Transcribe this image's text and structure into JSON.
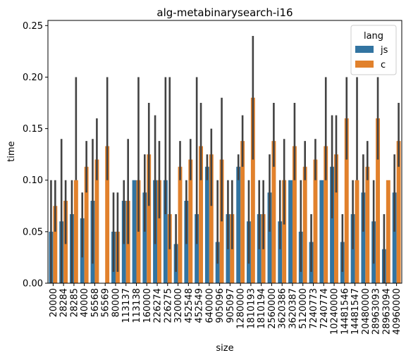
{
  "chart_data": {
    "type": "bar",
    "title": "alg-metabinarysearch-i16",
    "xlabel": "size",
    "ylabel": "time",
    "ylim": [
      0,
      0.255
    ],
    "yticks": [
      "0.00",
      "0.05",
      "0.10",
      "0.15",
      "0.20",
      "0.25"
    ],
    "legend": {
      "title": "lang",
      "position": "top-right"
    },
    "categories": [
      "20000",
      "28284",
      "28285",
      "40000",
      "56568",
      "56569",
      "80000",
      "113137",
      "113138",
      "160000",
      "226274",
      "226275",
      "320000",
      "452548",
      "452549",
      "640000",
      "905096",
      "905097",
      "1280000",
      "1810193",
      "1810194",
      "2560000",
      "3620386",
      "3620387",
      "5120000",
      "7240773",
      "7240774",
      "10240000",
      "14481546",
      "14481547",
      "20480000",
      "28963093",
      "28963094",
      "40960000"
    ],
    "series": [
      {
        "name": "js",
        "color": "#3274a1",
        "values": [
          0.05,
          0.06,
          0.067,
          0.063,
          0.08,
          0,
          0.05,
          0.08,
          0.1,
          0.088,
          0.1,
          0.1,
          0.038,
          0.08,
          0.067,
          0.113,
          0.04,
          0.067,
          0.113,
          0.06,
          0.067,
          0.088,
          0.06,
          0.1,
          0.05,
          0.04,
          0.1,
          0.113,
          0.04,
          0.067,
          0.088,
          0.06,
          0.033,
          0.088
        ],
        "err_low": [
          0,
          0,
          0,
          0.025,
          0.019,
          0,
          0.011,
          0.038,
          0.1,
          0.05,
          0.038,
          0.067,
          0.011,
          0.038,
          0.038,
          0.1,
          0.019,
          0.033,
          0.1,
          0.019,
          0.033,
          0.05,
          0.033,
          0.1,
          0.011,
          0.011,
          0.1,
          0.063,
          0.011,
          0.033,
          0.05,
          0.019,
          0,
          0.05
        ],
        "err_high": [
          0.1,
          0.14,
          0.1,
          0.088,
          0.14,
          0,
          0.088,
          0.1,
          0.1,
          0.125,
          0.163,
          0.2,
          0.067,
          0.1,
          0.2,
          0.125,
          0.1,
          0.1,
          0.125,
          0.1,
          0.1,
          0.125,
          0.1,
          0.1,
          0.1,
          0.067,
          0.1,
          0.163,
          0.067,
          0.1,
          0.125,
          0.1,
          0.067,
          0.125
        ]
      },
      {
        "name": "c",
        "color": "#e1812c",
        "values": [
          0.075,
          0.08,
          0.1,
          0.113,
          0.12,
          0.133,
          0.05,
          0.08,
          0.1,
          0.125,
          0.1,
          0.067,
          0.113,
          0.12,
          0.133,
          0.125,
          0.12,
          0.067,
          0.138,
          0.18,
          0.067,
          0.138,
          0.1,
          0.133,
          0.113,
          0.12,
          0.133,
          0.125,
          0.16,
          0.1,
          0.113,
          0.16,
          0.1,
          0.138
        ],
        "err_low": [
          0.05,
          0.038,
          0.1,
          0.088,
          0.1,
          0.1,
          0.011,
          0.038,
          0.05,
          0.075,
          0.063,
          0.033,
          0.1,
          0.1,
          0.1,
          0.075,
          0.06,
          0.033,
          0.113,
          0.12,
          0.033,
          0.113,
          0.057,
          0.1,
          0.1,
          0.1,
          0.1,
          0.088,
          0.12,
          0.1,
          0.1,
          0.12,
          0.1,
          0.113
        ],
        "err_high": [
          0.1,
          0.1,
          0.2,
          0.138,
          0.16,
          0.2,
          0.088,
          0.14,
          0.2,
          0.175,
          0.138,
          0.2,
          0.138,
          0.14,
          0.175,
          0.15,
          0.18,
          0.1,
          0.163,
          0.24,
          0.1,
          0.175,
          0.14,
          0.175,
          0.138,
          0.14,
          0.2,
          0.163,
          0.2,
          0.2,
          0.138,
          0.2,
          0.1,
          0.175
        ]
      }
    ],
    "grid": false
  }
}
